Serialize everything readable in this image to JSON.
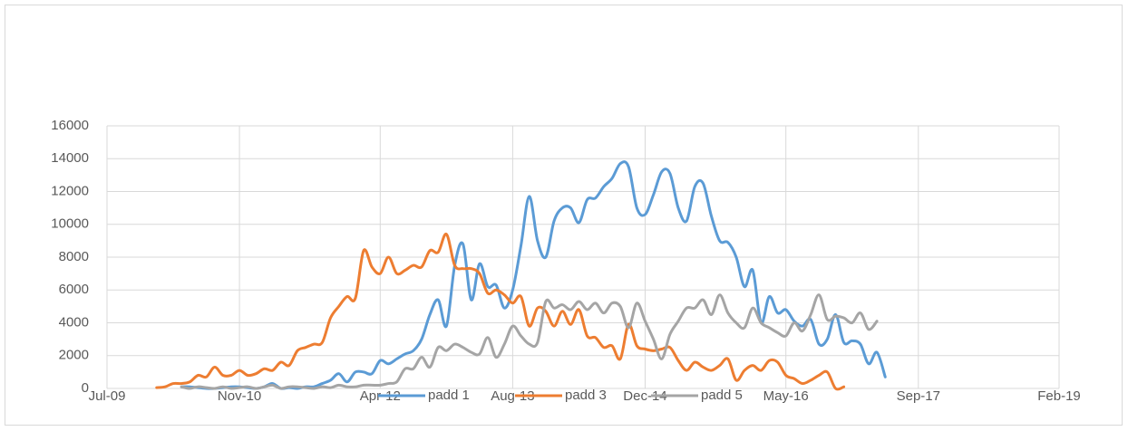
{
  "chart_data": {
    "type": "line",
    "x": [
      "2010-01",
      "2010-02",
      "2010-03",
      "2010-04",
      "2010-05",
      "2010-06",
      "2010-07",
      "2010-08",
      "2010-09",
      "2010-10",
      "2010-11",
      "2010-12",
      "2011-01",
      "2011-02",
      "2011-03",
      "2011-04",
      "2011-05",
      "2011-06",
      "2011-07",
      "2011-08",
      "2011-09",
      "2011-10",
      "2011-11",
      "2011-12",
      "2012-01",
      "2012-02",
      "2012-03",
      "2012-04",
      "2012-05",
      "2012-06",
      "2012-07",
      "2012-08",
      "2012-09",
      "2012-10",
      "2012-11",
      "2012-12",
      "2013-01",
      "2013-02",
      "2013-03",
      "2013-04",
      "2013-05",
      "2013-06",
      "2013-07",
      "2013-08",
      "2013-09",
      "2013-10",
      "2013-11",
      "2013-12",
      "2014-01",
      "2014-02",
      "2014-03",
      "2014-04",
      "2014-05",
      "2014-06",
      "2014-07",
      "2014-08",
      "2014-09",
      "2014-10",
      "2014-11",
      "2014-12",
      "2015-01",
      "2015-02",
      "2015-03",
      "2015-04",
      "2015-05",
      "2015-06",
      "2015-07",
      "2015-08",
      "2015-09",
      "2015-10",
      "2015-11",
      "2015-12",
      "2016-01",
      "2016-02",
      "2016-03",
      "2016-04",
      "2016-05",
      "2016-06",
      "2016-07",
      "2016-08",
      "2016-09",
      "2016-10",
      "2016-11",
      "2016-12",
      "2017-01",
      "2017-02",
      "2017-03",
      "2017-04",
      "2017-05"
    ],
    "series": [
      {
        "name": "padd 1",
        "color": "#5b9bd5",
        "values": [
          null,
          null,
          null,
          100,
          100,
          50,
          0,
          0,
          50,
          100,
          100,
          50,
          0,
          100,
          300,
          0,
          50,
          0,
          100,
          100,
          300,
          500,
          900,
          400,
          1000,
          1000,
          900,
          1700,
          1500,
          1800,
          2100,
          2300,
          3000,
          4500,
          5400,
          3800,
          7500,
          8800,
          5400,
          7600,
          6200,
          6300,
          4900,
          6000,
          8700,
          11700,
          9000,
          8000,
          10200,
          11000,
          11000,
          10100,
          11500,
          11600,
          12300,
          12800,
          13700,
          13500,
          11000,
          10600,
          11800,
          13200,
          13100,
          11000,
          10200,
          12300,
          12500,
          10500,
          9000,
          8900,
          8000,
          6200,
          7200,
          4000,
          5600,
          4600,
          4800,
          4100,
          3800,
          4200,
          2700,
          3000,
          4500,
          2800,
          2900,
          2700,
          1500,
          2200,
          700
        ]
      },
      {
        "name": "padd 3",
        "color": "#ed7d31",
        "values": [
          50,
          100,
          300,
          300,
          400,
          800,
          700,
          1300,
          800,
          800,
          1100,
          800,
          900,
          1200,
          1100,
          1600,
          1400,
          2300,
          2500,
          2700,
          2800,
          4300,
          5000,
          5600,
          5500,
          8400,
          7400,
          7000,
          8000,
          7000,
          7200,
          7500,
          7400,
          8400,
          8300,
          9400,
          7500,
          7300,
          7300,
          7000,
          5800,
          6000,
          5700,
          5200,
          5600,
          3800,
          4900,
          4700,
          3800,
          4700,
          3900,
          4800,
          3200,
          3100,
          2500,
          2600,
          1800,
          3900,
          2600,
          2400,
          2300,
          2400,
          2500,
          1700,
          1100,
          1600,
          1300,
          1100,
          1400,
          1800,
          500,
          1100,
          1400,
          1100,
          1700,
          1600,
          800,
          600,
          300,
          500,
          800,
          1000,
          0,
          100,
          null,
          null,
          null,
          null,
          null
        ]
      },
      {
        "name": "padd 5",
        "color": "#a5a5a5",
        "values": [
          null,
          null,
          null,
          100,
          0,
          100,
          50,
          0,
          100,
          0,
          50,
          100,
          0,
          100,
          200,
          0,
          100,
          100,
          50,
          0,
          100,
          50,
          200,
          100,
          100,
          200,
          200,
          200,
          300,
          400,
          1200,
          1200,
          1900,
          1300,
          2500,
          2300,
          2700,
          2500,
          2200,
          2100,
          3100,
          1900,
          2700,
          3800,
          3200,
          2700,
          2800,
          5300,
          4900,
          5100,
          4800,
          5300,
          4800,
          5200,
          4600,
          5200,
          5000,
          3700,
          5200,
          4100,
          3000,
          1800,
          3300,
          4100,
          4900,
          4900,
          5400,
          4500,
          5700,
          4600,
          4000,
          3700,
          4900,
          4000,
          3700,
          3400,
          3200,
          4000,
          3500,
          4500,
          5700,
          4200,
          4400,
          4300,
          4000,
          4600,
          3600,
          4100,
          null
        ]
      }
    ],
    "xlim": [
      "2009-07",
      "2019-02"
    ],
    "xticks": [
      {
        "value": "2009-07",
        "label": "Jul-09"
      },
      {
        "value": "2010-11",
        "label": "Nov-10"
      },
      {
        "value": "2012-04",
        "label": "Apr-12"
      },
      {
        "value": "2013-08",
        "label": "Aug-13"
      },
      {
        "value": "2014-12",
        "label": "Dec-14"
      },
      {
        "value": "2016-05",
        "label": "May-16"
      },
      {
        "value": "2017-09",
        "label": "Sep-17"
      },
      {
        "value": "2019-02",
        "label": "Feb-19"
      }
    ],
    "ylim": [
      0,
      16000
    ],
    "yticks": [
      0,
      2000,
      4000,
      6000,
      8000,
      10000,
      12000,
      14000,
      16000
    ],
    "grid": true,
    "legend": "bottom"
  }
}
